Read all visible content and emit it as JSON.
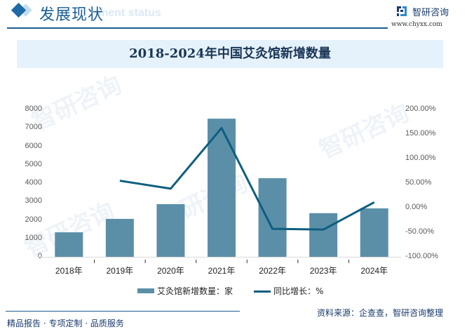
{
  "header": {
    "section_title": "发展现状",
    "ghost_text": "ment status",
    "brand_name": "智研咨询",
    "brand_url": "www.chyxx.com"
  },
  "colors": {
    "bar": "#5b8fa8",
    "line": "#0e5e80",
    "title_band": "#e5f2fb",
    "accent": "#1e6aa6"
  },
  "chart_data": {
    "type": "bar",
    "title": "2018-2024年中国艾灸馆新增数量",
    "categories": [
      "2018年",
      "2019年",
      "2020年",
      "2021年",
      "2022年",
      "2023年",
      "2024年"
    ],
    "series": [
      {
        "name": "艾灸馆新增数量：家",
        "type": "bar",
        "axis": "left",
        "values": [
          1330,
          2060,
          2860,
          7500,
          4270,
          2370,
          2630
        ]
      },
      {
        "name": "同比增长：%",
        "type": "line",
        "axis": "right",
        "values": [
          null,
          54.9,
          38.8,
          162.2,
          -43.1,
          -44.5,
          11.0
        ]
      }
    ],
    "y_left": {
      "ticks": [
        "0",
        "1000",
        "2000",
        "3000",
        "4000",
        "5000",
        "6000",
        "7000",
        "8000"
      ],
      "ylim": [
        0,
        8000
      ]
    },
    "y_right": {
      "ticks": [
        "-100.00%",
        "-50.00%",
        "0.00%",
        "50.00%",
        "100.00%",
        "150.00%",
        "200.00%"
      ],
      "ylim": [
        -100,
        200
      ]
    },
    "xlabel": "",
    "ylabel": "",
    "grid": false,
    "legend_position": "bottom"
  },
  "legend": {
    "bar_label": "艾灸馆新增数量：家",
    "line_label": "同比增长：%"
  },
  "footer": {
    "tagline": "精品报告 · 专项定制 · 品质服务",
    "source": "资料来源：企查查，智研咨询整理"
  },
  "watermark": "智研咨询"
}
